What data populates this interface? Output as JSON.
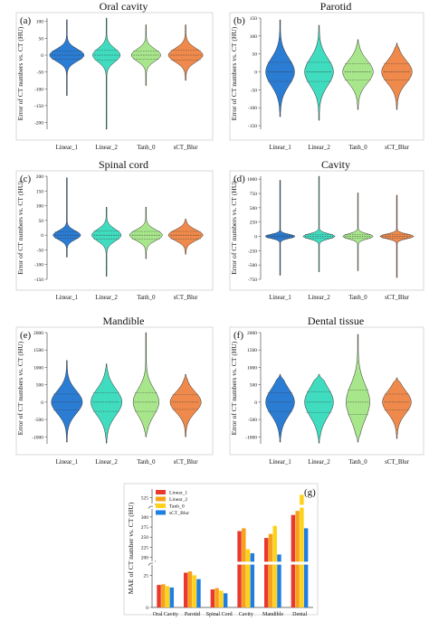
{
  "violin_panels": [
    {
      "panel_label": "(a)",
      "title": "Oral cavity",
      "ylabel": "Error of CT numbers vs. CT (HU)",
      "categories": [
        "Linear_1",
        "Linear_2",
        "Tanh_0",
        "sCT_Blur"
      ],
      "ylim": [
        -220,
        110
      ],
      "yticks": [
        100,
        50,
        0,
        -50,
        -100,
        -150,
        -200
      ],
      "min": [
        -120,
        -220,
        -90,
        -75
      ],
      "max": [
        105,
        110,
        90,
        90
      ],
      "width": [
        1.0,
        0.8,
        0.85,
        1.0
      ],
      "spread": [
        18,
        20,
        18,
        20
      ]
    },
    {
      "panel_label": "(b)",
      "title": "Parotid",
      "ylabel": "Error of CT numbers vs. CT (HU)",
      "categories": [
        "Linear_1",
        "Linear_2",
        "Tanh_0",
        "sCT_Blur"
      ],
      "ylim": [
        -160,
        150
      ],
      "yticks": [
        150,
        100,
        50,
        0,
        -50,
        -100,
        -150
      ],
      "min": [
        -125,
        -135,
        -105,
        -105
      ],
      "max": [
        145,
        130,
        90,
        80
      ],
      "width": [
        0.85,
        0.85,
        0.9,
        0.9
      ],
      "spread": [
        38,
        38,
        32,
        32
      ]
    },
    {
      "panel_label": "(c)",
      "title": "Spinal cord",
      "ylabel": "Error of CT numbers vs. CT (HU)",
      "categories": [
        "Linear_1",
        "Linear_2",
        "Tanh_0",
        "sCT_Blur"
      ],
      "ylim": [
        -150,
        200
      ],
      "yticks": [
        200,
        150,
        100,
        50,
        0,
        -50,
        -100,
        -150
      ],
      "min": [
        -75,
        -140,
        -80,
        -65
      ],
      "max": [
        195,
        95,
        95,
        55
      ],
      "width": [
        0.8,
        0.85,
        0.95,
        1.0
      ],
      "spread": [
        15,
        20,
        18,
        18
      ]
    },
    {
      "panel_label": "(d)",
      "title": "Cavity",
      "ylabel": "Error of CT numbers vs. CT (HU)",
      "categories": [
        "Linear_1",
        "Linear_2",
        "Tanh_0",
        "sCT_Blur"
      ],
      "ylim": [
        -750,
        1050
      ],
      "yticks": [
        1000,
        750,
        500,
        250,
        0,
        -250,
        -500,
        -750
      ],
      "min": [
        -680,
        -620,
        -600,
        -720
      ],
      "max": [
        980,
        1050,
        760,
        720
      ],
      "width": [
        0.9,
        0.95,
        0.9,
        1.0
      ],
      "spread": [
        35,
        45,
        45,
        40
      ]
    },
    {
      "panel_label": "(e)",
      "title": "Mandible",
      "ylabel": "Error of CT numbers vs. CT (HU)",
      "categories": [
        "Linear_1",
        "Linear_2",
        "Tanh_0",
        "sCT_Blur"
      ],
      "ylim": [
        -1200,
        2000
      ],
      "yticks": [
        2000,
        1500,
        1000,
        500,
        0,
        -500,
        -1000
      ],
      "min": [
        -1150,
        -1180,
        -1000,
        -1000
      ],
      "max": [
        1200,
        1100,
        2000,
        800
      ],
      "width": [
        0.9,
        0.9,
        0.75,
        0.9
      ],
      "spread": [
        330,
        380,
        380,
        300
      ]
    },
    {
      "panel_label": "(f)",
      "title": "Dental tissue",
      "ylabel": "Error of CT numbers vs. CT (HU)",
      "categories": [
        "Linear_1",
        "Linear_2",
        "Tanh_0",
        "sCT_Blur"
      ],
      "ylim": [
        -1200,
        2000
      ],
      "yticks": [
        2000,
        1500,
        1000,
        500,
        0,
        -500,
        -1000
      ],
      "min": [
        -1150,
        -1180,
        -1150,
        -1050
      ],
      "max": [
        800,
        800,
        1950,
        700
      ],
      "width": [
        0.85,
        0.85,
        0.7,
        0.85
      ],
      "spread": [
        380,
        420,
        500,
        330
      ]
    }
  ],
  "violin_colors": [
    "#2b7cd3",
    "#40dcc0",
    "#a8e68c",
    "#ef8a4c"
  ],
  "chart_data": {
    "type": "bar",
    "panel_label": "(g)",
    "categories": [
      "Oral Cavity",
      "Parotid",
      "Spinal Cord",
      "Cavity",
      "Mandible",
      "Dental"
    ],
    "ylabel": "MAE of CT number vs. CT (HU)",
    "axis_break": [
      [
        33,
        190
      ],
      [
        320,
        515
      ]
    ],
    "yticks": [
      0,
      25,
      200,
      225,
      250,
      275,
      300,
      525
    ],
    "series": [
      {
        "name": "Linear_1",
        "color": "#e8392c",
        "values": [
          17.5,
          27,
          14,
          265,
          248,
          305
        ]
      },
      {
        "name": "Linear_2",
        "color": "#f7a11a",
        "values": [
          18,
          28,
          15,
          272,
          258,
          315
        ]
      },
      {
        "name": "Tanh_0",
        "color": "#ffd21a",
        "values": [
          16.5,
          25,
          13,
          220,
          278,
          530
        ]
      },
      {
        "name": "sCT_Blur",
        "color": "#1f7fe0",
        "values": [
          15.5,
          22,
          11,
          210,
          207,
          272
        ]
      }
    ]
  }
}
